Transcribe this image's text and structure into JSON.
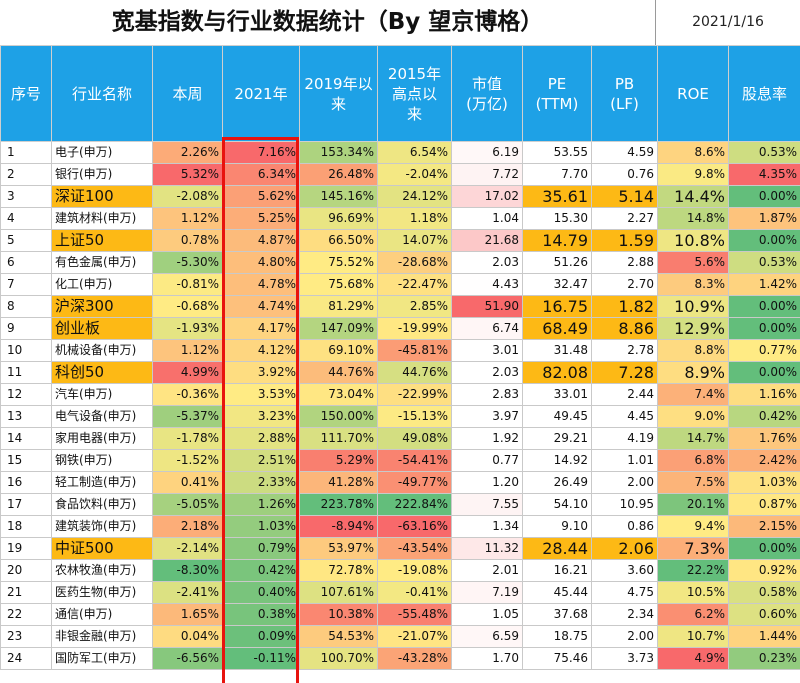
{
  "title": "宽基指数与行业数据统计（By 望京博格）",
  "date": "2021/1/16",
  "columns": [
    "序号",
    "行业名称",
    "本周",
    "2021年",
    "2019年以\n来",
    "2015年\n高点以\n来",
    "市值\n(万亿)",
    "PE\n(TTM)",
    "PB\n(LF)",
    "ROE",
    "股息率"
  ],
  "rows": [
    {
      "seq": "1",
      "name": "电子(申万)",
      "cells": [
        "2.26%",
        "7.16%",
        "153.34%",
        "6.54%",
        "6.19",
        "53.55",
        "4.59",
        "8.6%",
        "0.53%"
      ]
    },
    {
      "seq": "2",
      "name": "银行(申万)",
      "cells": [
        "5.32%",
        "6.34%",
        "26.48%",
        "-2.04%",
        "7.72",
        "7.70",
        "0.76",
        "9.8%",
        "4.35%"
      ]
    },
    {
      "seq": "3",
      "name": "深证100",
      "index": true,
      "cells": [
        "-2.08%",
        "5.62%",
        "145.16%",
        "24.12%",
        "17.02",
        "35.61",
        "5.14",
        "14.4%",
        "0.00%"
      ]
    },
    {
      "seq": "4",
      "name": "建筑材料(申万)",
      "cells": [
        "1.12%",
        "5.25%",
        "96.69%",
        "1.18%",
        "1.04",
        "15.30",
        "2.27",
        "14.8%",
        "1.87%"
      ]
    },
    {
      "seq": "5",
      "name": "上证50",
      "index": true,
      "cells": [
        "0.78%",
        "4.87%",
        "66.50%",
        "14.07%",
        "21.68",
        "14.79",
        "1.59",
        "10.8%",
        "0.00%"
      ]
    },
    {
      "seq": "6",
      "name": "有色金属(申万)",
      "cells": [
        "-5.30%",
        "4.80%",
        "75.52%",
        "-28.68%",
        "2.03",
        "51.26",
        "2.88",
        "5.6%",
        "0.53%"
      ]
    },
    {
      "seq": "7",
      "name": "化工(申万)",
      "cells": [
        "-0.81%",
        "4.78%",
        "75.68%",
        "-22.47%",
        "4.43",
        "32.47",
        "2.70",
        "8.3%",
        "1.42%"
      ]
    },
    {
      "seq": "8",
      "name": "沪深300",
      "index": true,
      "cells": [
        "-0.68%",
        "4.74%",
        "81.29%",
        "2.85%",
        "51.90",
        "16.75",
        "1.82",
        "10.9%",
        "0.00%"
      ]
    },
    {
      "seq": "9",
      "name": "创业板",
      "index": true,
      "cells": [
        "-1.93%",
        "4.17%",
        "147.09%",
        "-19.99%",
        "6.74",
        "68.49",
        "8.86",
        "12.9%",
        "0.00%"
      ]
    },
    {
      "seq": "10",
      "name": "机械设备(申万)",
      "cells": [
        "1.12%",
        "4.12%",
        "69.10%",
        "-45.81%",
        "3.01",
        "31.48",
        "2.78",
        "8.8%",
        "0.77%"
      ]
    },
    {
      "seq": "11",
      "name": "科创50",
      "index": true,
      "cells": [
        "4.99%",
        "3.92%",
        "44.76%",
        "44.76%",
        "2.03",
        "82.08",
        "7.28",
        "8.9%",
        "0.00%"
      ]
    },
    {
      "seq": "12",
      "name": "汽车(申万)",
      "cells": [
        "-0.36%",
        "3.53%",
        "73.04%",
        "-22.99%",
        "2.83",
        "33.01",
        "2.44",
        "7.4%",
        "1.16%"
      ]
    },
    {
      "seq": "13",
      "name": "电气设备(申万)",
      "cells": [
        "-5.37%",
        "3.23%",
        "150.00%",
        "-15.13%",
        "3.97",
        "49.45",
        "4.45",
        "9.0%",
        "0.42%"
      ]
    },
    {
      "seq": "14",
      "name": "家用电器(申万)",
      "cells": [
        "-1.78%",
        "2.88%",
        "111.70%",
        "49.08%",
        "1.92",
        "29.21",
        "4.19",
        "14.7%",
        "1.76%"
      ]
    },
    {
      "seq": "15",
      "name": "钢铁(申万)",
      "cells": [
        "-1.52%",
        "2.51%",
        "5.29%",
        "-54.41%",
        "0.77",
        "14.92",
        "1.01",
        "6.8%",
        "2.42%"
      ]
    },
    {
      "seq": "16",
      "name": "轻工制造(申万)",
      "cells": [
        "0.41%",
        "2.33%",
        "41.28%",
        "-49.77%",
        "1.20",
        "26.49",
        "2.00",
        "7.5%",
        "1.03%"
      ]
    },
    {
      "seq": "17",
      "name": "食品饮料(申万)",
      "cells": [
        "-5.05%",
        "1.26%",
        "223.78%",
        "222.84%",
        "7.55",
        "54.10",
        "10.95",
        "20.1%",
        "0.87%"
      ]
    },
    {
      "seq": "18",
      "name": "建筑装饰(申万)",
      "cells": [
        "2.18%",
        "1.03%",
        "-8.94%",
        "-63.16%",
        "1.34",
        "9.10",
        "0.86",
        "9.4%",
        "2.15%"
      ]
    },
    {
      "seq": "19",
      "name": "中证500",
      "index": true,
      "cells": [
        "-2.14%",
        "0.79%",
        "53.97%",
        "-43.54%",
        "11.32",
        "28.44",
        "2.06",
        "7.3%",
        "0.00%"
      ]
    },
    {
      "seq": "20",
      "name": "农林牧渔(申万)",
      "cells": [
        "-8.30%",
        "0.42%",
        "72.78%",
        "-19.08%",
        "2.01",
        "16.21",
        "3.60",
        "22.2%",
        "0.92%"
      ]
    },
    {
      "seq": "21",
      "name": "医药生物(申万)",
      "cells": [
        "-2.41%",
        "0.40%",
        "107.61%",
        "-0.41%",
        "7.19",
        "45.44",
        "4.75",
        "10.5%",
        "0.58%"
      ]
    },
    {
      "seq": "22",
      "name": "通信(申万)",
      "cells": [
        "1.65%",
        "0.38%",
        "10.38%",
        "-55.48%",
        "1.05",
        "37.68",
        "2.34",
        "6.2%",
        "0.60%"
      ]
    },
    {
      "seq": "23",
      "name": "非银金融(申万)",
      "cells": [
        "0.04%",
        "0.09%",
        "54.53%",
        "-21.07%",
        "6.59",
        "18.75",
        "2.00",
        "10.7%",
        "1.44%"
      ]
    },
    {
      "seq": "24",
      "name": "国防军工(申万)",
      "cells": [
        "-6.56%",
        "-0.11%",
        "100.70%",
        "-43.28%",
        "1.70",
        "75.46",
        "3.73",
        "4.9%",
        "0.23%"
      ]
    }
  ],
  "colors": {
    "header_bg": "#1ea1e6",
    "index_bg": "#fdb915",
    "highlight": "#e8130e",
    "scale_low": "#63be7b",
    "scale_mid": "#ffeb84",
    "scale_high": "#f8696b",
    "scale_low_alt": "#fdb915"
  }
}
